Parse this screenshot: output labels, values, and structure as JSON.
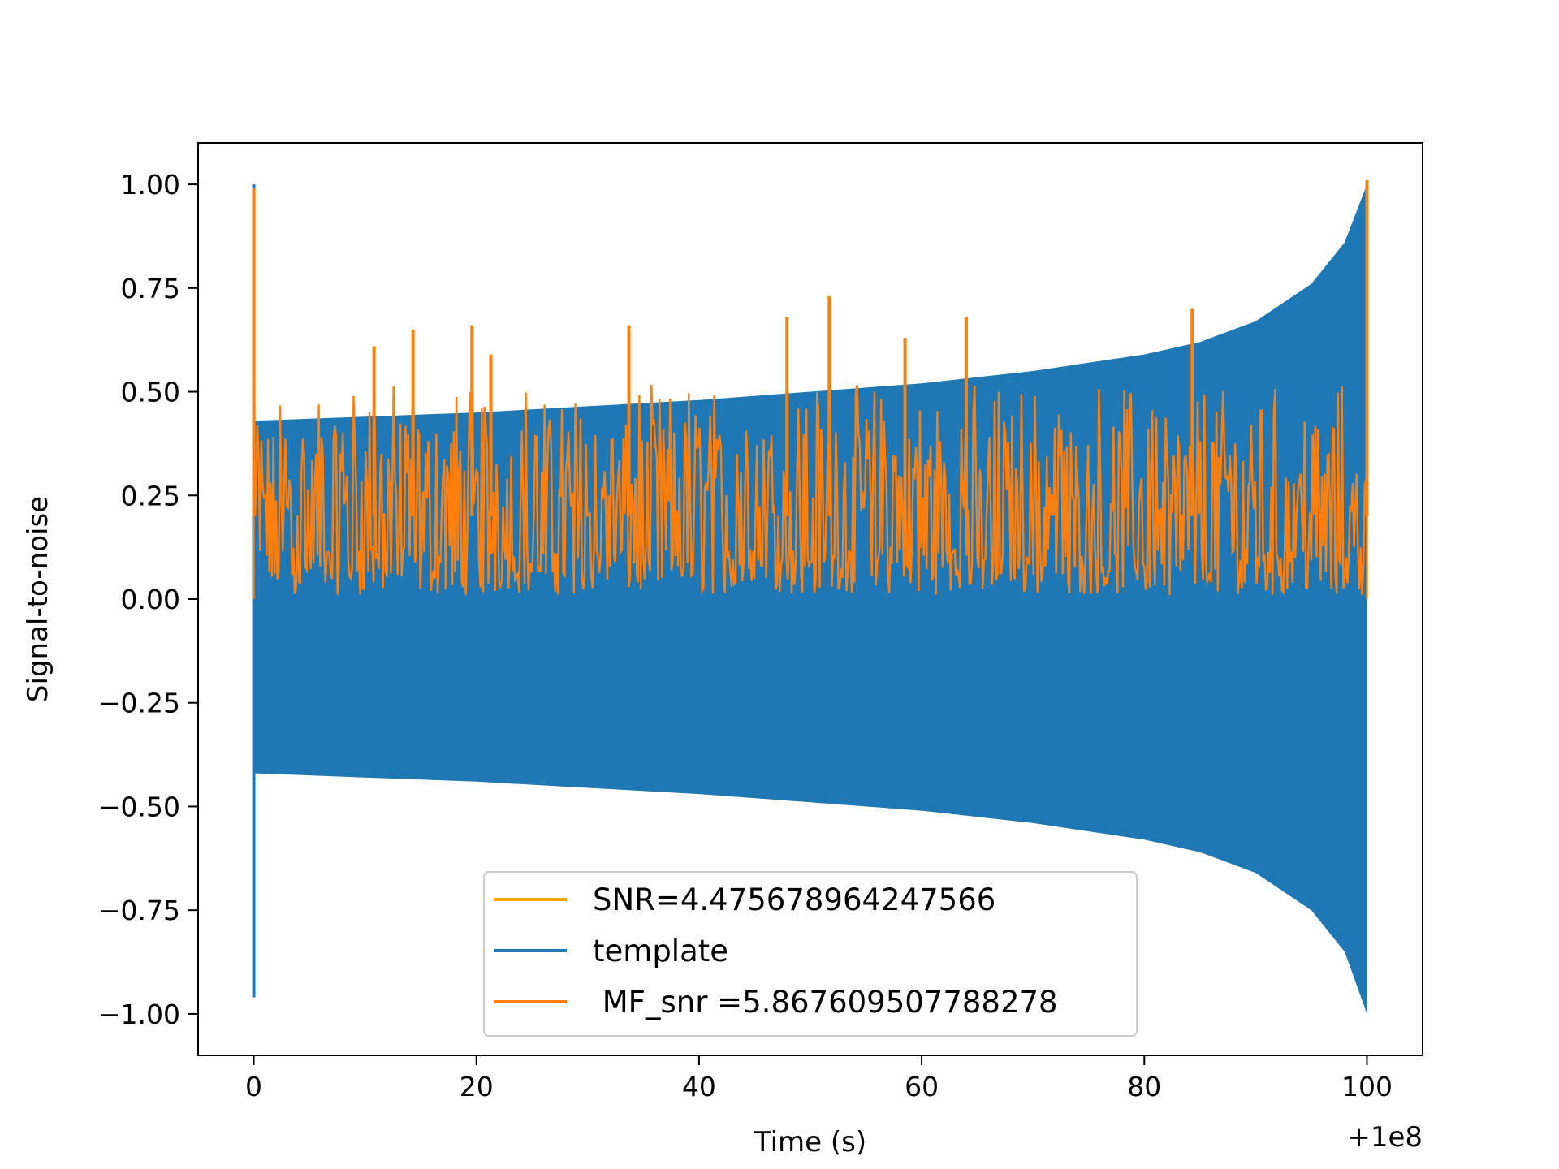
{
  "chart_data": {
    "type": "line",
    "title": "",
    "xlabel": "Time (s)",
    "ylabel": "Signal-to-noise",
    "x_offset_label": "+1e8",
    "xlim": [
      -5,
      105
    ],
    "ylim": [
      -1.1,
      1.1
    ],
    "xticks": [
      0,
      20,
      40,
      60,
      80,
      100
    ],
    "xtick_labels": [
      "0",
      "20",
      "40",
      "60",
      "80",
      "100"
    ],
    "yticks": [
      1.0,
      0.75,
      0.5,
      0.25,
      0.0,
      -0.25,
      -0.5,
      -0.75,
      -1.0
    ],
    "ytick_labels": [
      "1.00",
      "0.75",
      "0.50",
      "0.25",
      "0.00",
      "−0.25",
      "−0.50",
      "−0.75",
      "−1.00"
    ],
    "grid": false,
    "legend_position": "lower-center",
    "series": [
      {
        "name": "SNR=4.475678964247566",
        "color": "#ffa500",
        "x": [],
        "y": []
      },
      {
        "name": "template",
        "color": "#1f77b4",
        "style": "oscillating chirp envelope (filled band)",
        "x": [
          0,
          0.05,
          10,
          20,
          30,
          40,
          50,
          60,
          70,
          80,
          85,
          90,
          95,
          98,
          100
        ],
        "upper": [
          1.0,
          0.43,
          0.44,
          0.45,
          0.465,
          0.48,
          0.5,
          0.52,
          0.55,
          0.59,
          0.62,
          0.67,
          0.76,
          0.86,
          1.0
        ],
        "lower": [
          -0.96,
          -0.42,
          -0.43,
          -0.44,
          -0.455,
          -0.47,
          -0.49,
          -0.51,
          -0.54,
          -0.58,
          -0.61,
          -0.66,
          -0.75,
          -0.85,
          -1.0
        ]
      },
      {
        "name": " MF_snr =5.867609507788278",
        "color": "#ff7f0e",
        "style": "noisy band with spikes",
        "x": [
          0,
          10,
          20,
          30,
          40,
          50,
          60,
          70,
          80,
          90,
          100
        ],
        "band_low": [
          0.0,
          0.01,
          0.01,
          0.01,
          0.01,
          0.01,
          0.01,
          0.01,
          0.01,
          0.01,
          0.01
        ],
        "band_high": [
          0.98,
          0.45,
          0.45,
          0.45,
          0.45,
          0.45,
          0.45,
          0.45,
          0.45,
          0.45,
          0.45
        ],
        "peaks": [
          {
            "x": 0.0,
            "y": 0.99
          },
          {
            "x": 10.8,
            "y": 0.61
          },
          {
            "x": 14.3,
            "y": 0.65
          },
          {
            "x": 19.6,
            "y": 0.66
          },
          {
            "x": 21.3,
            "y": 0.59
          },
          {
            "x": 33.7,
            "y": 0.66
          },
          {
            "x": 47.9,
            "y": 0.68
          },
          {
            "x": 51.7,
            "y": 0.73
          },
          {
            "x": 58.5,
            "y": 0.63
          },
          {
            "x": 64.0,
            "y": 0.68
          },
          {
            "x": 84.3,
            "y": 0.7
          },
          {
            "x": 100.0,
            "y": 1.01
          }
        ]
      }
    ]
  }
}
